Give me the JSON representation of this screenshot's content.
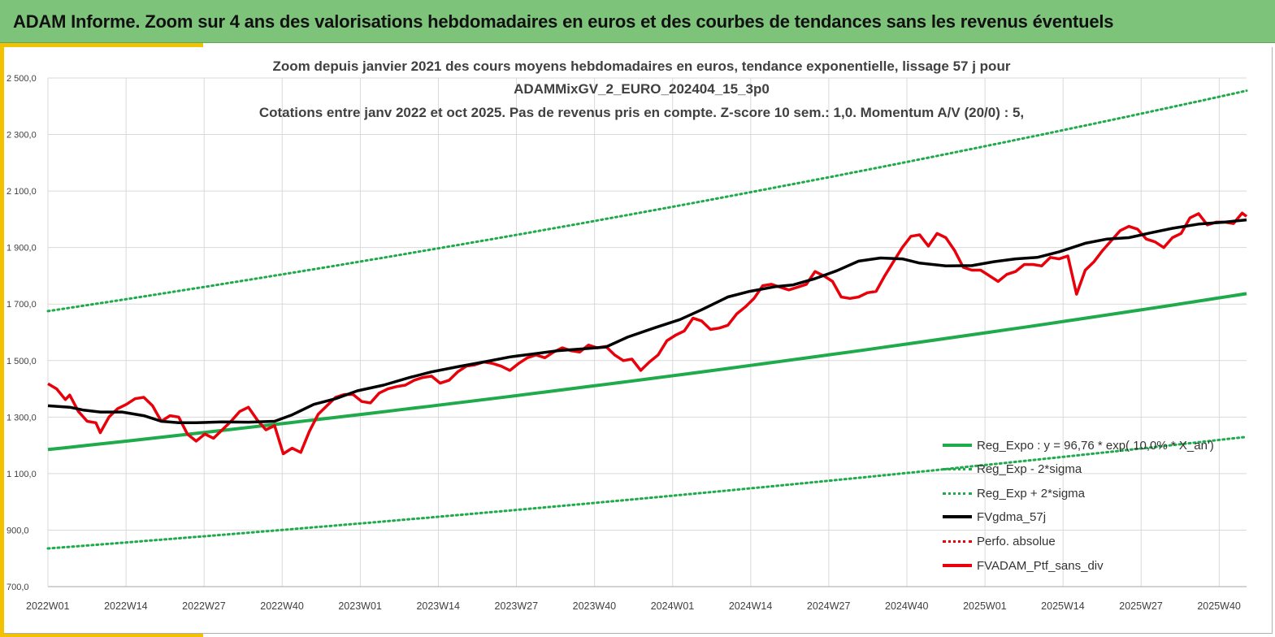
{
  "banner": {
    "title": "ADAM Informe. Zoom sur 4 ans des valorisations hebdomadaires en euros et des courbes de tendances sans les revenus éventuels"
  },
  "colors": {
    "banner_bg": "#7dc47a",
    "accent": "#f2c200",
    "reg_expo": "#1faa4b",
    "sigma": "#1faa4b",
    "fvgdma": "#000000",
    "perfo": "#e8000b",
    "ptf": "#e8000b"
  },
  "chart_data": {
    "type": "line",
    "title_lines": [
      "Zoom depuis janvier 2021 des cours moyens hebdomadaires  en euros, tendance exponentielle, lissage 57 j pour",
      "ADAMMixGV_2_EURO_202404_15_3p0",
      "Cotations  entre janv 2022 et oct 2025. Pas de revenus pris en compte. Z-score 10 sem.: 1,0. Momentum A/V (20/0) : 5,"
    ],
    "x_tick_labels": [
      "2022W01",
      "2022W14",
      "2022W27",
      "2022W40",
      "2023W01",
      "2023W14",
      "2023W27",
      "2023W40",
      "2024W01",
      "2024W14",
      "2024W27",
      "2024W40",
      "2025W01",
      "2025W14",
      "2025W27",
      "2025W40"
    ],
    "y_tick_labels": [
      "2 500,0",
      "2 300,0",
      "2 100,0",
      "1 900,0",
      "1 700,0",
      "1 500,0",
      "1 300,0",
      "1 100,0",
      "900,0",
      "700,0"
    ],
    "ylim": [
      700,
      2500
    ],
    "x_range_weeks": [
      0,
      198
    ],
    "grid": "vertical and horizontal",
    "legend_position": "bottom-right",
    "series": [
      {
        "key": "reg_expo",
        "name": "Reg_Expo : y = 96,76 * exp( 10,0% * X_an')",
        "style": "solid-thick",
        "start": 1185,
        "end": 1737
      },
      {
        "key": "reg_minus",
        "name": "Reg_Exp - 2*sigma",
        "style": "dotted",
        "start": 835,
        "end": 1230
      },
      {
        "key": "reg_plus",
        "name": "Reg_Exp + 2*sigma",
        "style": "dotted",
        "start": 1675,
        "end": 2455
      },
      {
        "key": "fvgdma",
        "name": "FVgdma_57j",
        "style": "solid",
        "points": [
          [
            0,
            1340
          ],
          [
            5,
            1335
          ],
          [
            8,
            1325
          ],
          [
            12,
            1318
          ],
          [
            17,
            1318
          ],
          [
            22,
            1305
          ],
          [
            26,
            1285
          ],
          [
            30,
            1280
          ],
          [
            34,
            1280
          ],
          [
            40,
            1283
          ],
          [
            46,
            1282
          ],
          [
            52,
            1285
          ],
          [
            56,
            1308
          ],
          [
            61,
            1345
          ],
          [
            66,
            1365
          ],
          [
            71,
            1393
          ],
          [
            77,
            1413
          ],
          [
            83,
            1440
          ],
          [
            88,
            1460
          ],
          [
            94,
            1478
          ],
          [
            100,
            1495
          ],
          [
            106,
            1513
          ],
          [
            111,
            1523
          ],
          [
            117,
            1535
          ],
          [
            123,
            1542
          ],
          [
            128,
            1548
          ],
          [
            133,
            1583
          ],
          [
            139,
            1615
          ],
          [
            145,
            1645
          ],
          [
            150,
            1680
          ],
          [
            156,
            1725
          ],
          [
            161,
            1745
          ],
          [
            167,
            1762
          ],
          [
            171,
            1768
          ],
          [
            176,
            1790
          ],
          [
            181,
            1818
          ],
          [
            186,
            1852
          ],
          [
            191,
            1863
          ],
          [
            196,
            1860
          ],
          [
            200,
            1845
          ],
          [
            206,
            1835
          ],
          [
            212,
            1836
          ],
          [
            217,
            1850
          ],
          [
            222,
            1860
          ],
          [
            227,
            1865
          ],
          [
            232,
            1885
          ],
          [
            238,
            1915
          ],
          [
            243,
            1930
          ],
          [
            248,
            1935
          ],
          [
            253,
            1952
          ],
          [
            258,
            1968
          ],
          [
            264,
            1983
          ],
          [
            270,
            1990
          ],
          [
            275,
            1998
          ]
        ]
      },
      {
        "key": "perfo",
        "name": "Perfo. absolue",
        "style": "dotted"
      },
      {
        "key": "ptf",
        "name": "FVADAM_Ptf_sans_div",
        "style": "solid-thick",
        "points": [
          [
            0,
            1418
          ],
          [
            2,
            1400
          ],
          [
            4,
            1362
          ],
          [
            5,
            1378
          ],
          [
            7,
            1320
          ],
          [
            9,
            1285
          ],
          [
            11,
            1280
          ],
          [
            12,
            1245
          ],
          [
            14,
            1300
          ],
          [
            16,
            1330
          ],
          [
            18,
            1345
          ],
          [
            20,
            1365
          ],
          [
            22,
            1370
          ],
          [
            24,
            1340
          ],
          [
            26,
            1285
          ],
          [
            28,
            1305
          ],
          [
            30,
            1300
          ],
          [
            32,
            1240
          ],
          [
            34,
            1215
          ],
          [
            36,
            1240
          ],
          [
            38,
            1225
          ],
          [
            40,
            1255
          ],
          [
            42,
            1285
          ],
          [
            44,
            1320
          ],
          [
            46,
            1335
          ],
          [
            48,
            1290
          ],
          [
            50,
            1255
          ],
          [
            52,
            1270
          ],
          [
            54,
            1170
          ],
          [
            56,
            1190
          ],
          [
            58,
            1175
          ],
          [
            60,
            1250
          ],
          [
            62,
            1310
          ],
          [
            64,
            1340
          ],
          [
            66,
            1370
          ],
          [
            68,
            1380
          ],
          [
            70,
            1380
          ],
          [
            72,
            1355
          ],
          [
            74,
            1350
          ],
          [
            76,
            1385
          ],
          [
            78,
            1400
          ],
          [
            80,
            1408
          ],
          [
            82,
            1413
          ],
          [
            84,
            1430
          ],
          [
            86,
            1440
          ],
          [
            88,
            1445
          ],
          [
            90,
            1420
          ],
          [
            92,
            1430
          ],
          [
            94,
            1460
          ],
          [
            96,
            1480
          ],
          [
            98,
            1485
          ],
          [
            100,
            1495
          ],
          [
            102,
            1490
          ],
          [
            104,
            1480
          ],
          [
            106,
            1465
          ],
          [
            108,
            1490
          ],
          [
            110,
            1510
          ],
          [
            112,
            1520
          ],
          [
            114,
            1510
          ],
          [
            116,
            1530
          ],
          [
            118,
            1545
          ],
          [
            120,
            1535
          ],
          [
            122,
            1530
          ],
          [
            124,
            1555
          ],
          [
            126,
            1545
          ],
          [
            128,
            1550
          ],
          [
            130,
            1520
          ],
          [
            132,
            1500
          ],
          [
            134,
            1505
          ],
          [
            136,
            1465
          ],
          [
            138,
            1495
          ],
          [
            140,
            1520
          ],
          [
            142,
            1570
          ],
          [
            144,
            1590
          ],
          [
            146,
            1605
          ],
          [
            148,
            1650
          ],
          [
            150,
            1640
          ],
          [
            152,
            1610
          ],
          [
            154,
            1615
          ],
          [
            156,
            1625
          ],
          [
            158,
            1665
          ],
          [
            160,
            1690
          ],
          [
            162,
            1720
          ],
          [
            164,
            1765
          ],
          [
            166,
            1770
          ],
          [
            168,
            1760
          ],
          [
            170,
            1750
          ],
          [
            172,
            1760
          ],
          [
            174,
            1770
          ],
          [
            176,
            1815
          ],
          [
            178,
            1800
          ],
          [
            180,
            1780
          ],
          [
            182,
            1725
          ],
          [
            184,
            1720
          ],
          [
            186,
            1725
          ],
          [
            188,
            1740
          ],
          [
            190,
            1745
          ],
          [
            192,
            1800
          ],
          [
            194,
            1850
          ],
          [
            196,
            1900
          ],
          [
            198,
            1940
          ],
          [
            200,
            1945
          ],
          [
            202,
            1905
          ],
          [
            204,
            1950
          ],
          [
            206,
            1935
          ],
          [
            208,
            1890
          ],
          [
            210,
            1830
          ],
          [
            212,
            1820
          ],
          [
            214,
            1820
          ],
          [
            216,
            1800
          ],
          [
            218,
            1780
          ],
          [
            220,
            1805
          ],
          [
            222,
            1815
          ],
          [
            224,
            1840
          ],
          [
            226,
            1840
          ],
          [
            228,
            1835
          ],
          [
            230,
            1865
          ],
          [
            232,
            1860
          ],
          [
            234,
            1870
          ],
          [
            236,
            1735
          ],
          [
            238,
            1820
          ],
          [
            240,
            1850
          ],
          [
            242,
            1890
          ],
          [
            244,
            1925
          ],
          [
            246,
            1960
          ],
          [
            248,
            1975
          ],
          [
            250,
            1965
          ],
          [
            252,
            1930
          ],
          [
            254,
            1920
          ],
          [
            256,
            1900
          ],
          [
            258,
            1935
          ],
          [
            260,
            1950
          ],
          [
            262,
            2005
          ],
          [
            264,
            2020
          ],
          [
            266,
            1980
          ],
          [
            268,
            1990
          ],
          [
            270,
            1990
          ],
          [
            272,
            1985
          ],
          [
            274,
            2022
          ],
          [
            275,
            2010
          ]
        ]
      }
    ]
  }
}
